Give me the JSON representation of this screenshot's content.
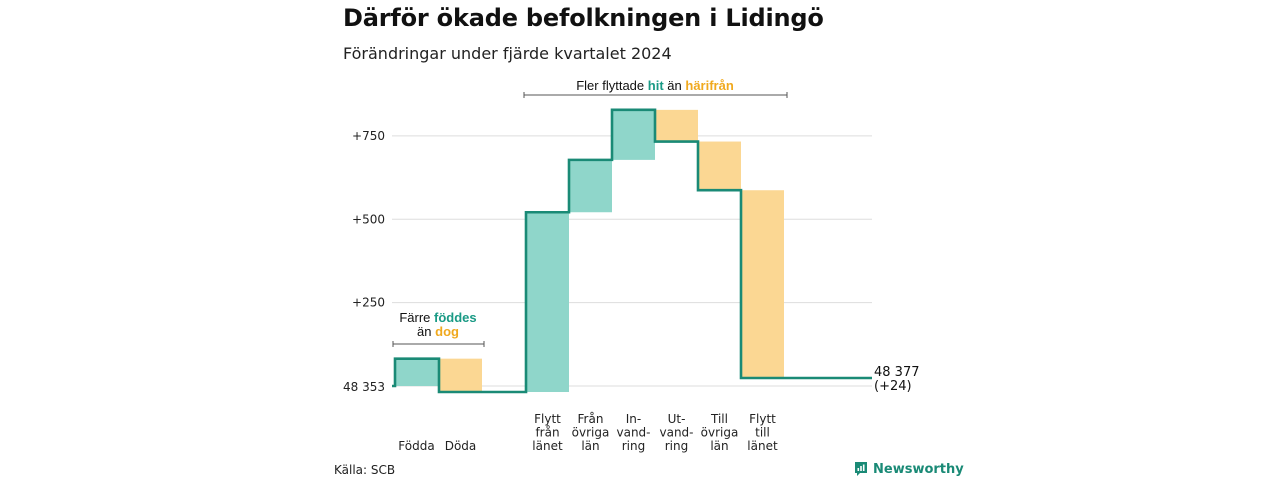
{
  "title": "Därför ökade befolkningen i Lidingö",
  "subtitle": "Förändringar under fjärde kvartalet 2024",
  "source": "Källa: SCB",
  "brand": "Newsworthy",
  "colors": {
    "increase": "#8fd6ca",
    "decrease": "#fbd793",
    "line": "#1a8a76",
    "increase_text": "#1a9a85",
    "decrease_text": "#f0a91e",
    "grid": "#dddddd"
  },
  "annotations": {
    "births": {
      "line1": "Färre",
      "teal_word": "föddes",
      "line2_prefix": "än",
      "orange_word": "dog"
    },
    "moves": {
      "prefix": "Fler flyttade",
      "teal_word": "hit",
      "middle": "än",
      "orange_word": "härifrån"
    }
  },
  "chart_data": {
    "type": "waterfall",
    "start_label": "48 353",
    "end_label": "48 377",
    "end_change_label": "(+24)",
    "y_ticks": [
      "+250",
      "+500",
      "+750"
    ],
    "y_tick_values": [
      250,
      500,
      750
    ],
    "ylim": [
      0,
      840
    ],
    "grid": true,
    "start_value": 0,
    "end_value": 24,
    "categories": [
      "Födda",
      "Döda",
      "Flytt från länet",
      "Från övriga län",
      "In-vandring",
      "Ut-vandring",
      "Till övriga län",
      "Flytt till länet"
    ],
    "category_lines": [
      [
        "Födda"
      ],
      [
        "Döda"
      ],
      [
        "Flytt",
        "från",
        "länet"
      ],
      [
        "Från",
        "övriga",
        "län"
      ],
      [
        "In-",
        "vand-",
        "ring"
      ],
      [
        "Ut-",
        "vand-",
        "ring"
      ],
      [
        "Till",
        "övriga",
        "län"
      ],
      [
        "Flytt",
        "till",
        "länet"
      ]
    ],
    "values": [
      82,
      -100,
      539,
      157,
      150,
      -95,
      -146,
      -563
    ],
    "cumulative": [
      82,
      -18,
      521,
      678,
      828,
      733,
      587,
      24
    ]
  }
}
